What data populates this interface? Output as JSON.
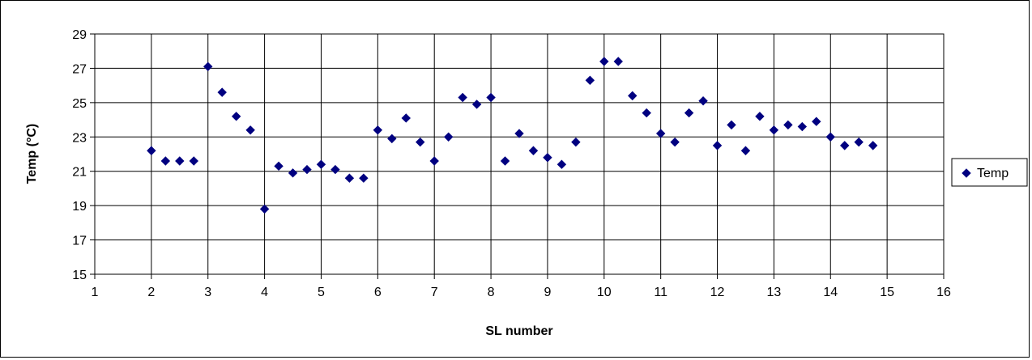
{
  "chart_data": {
    "type": "scatter",
    "xlabel": "SL number",
    "ylabel": "Temp (°C)",
    "xlim": [
      1,
      16
    ],
    "ylim": [
      15,
      29
    ],
    "xticks": [
      1,
      2,
      3,
      4,
      5,
      6,
      7,
      8,
      9,
      10,
      11,
      12,
      13,
      14,
      15,
      16
    ],
    "yticks": [
      15,
      17,
      19,
      21,
      23,
      25,
      27,
      29
    ],
    "grid": true,
    "legend_position": "right",
    "marker": "diamond",
    "series": [
      {
        "name": "Temp",
        "color": "#000080",
        "points": [
          [
            2.0,
            22.2
          ],
          [
            2.25,
            21.6
          ],
          [
            2.5,
            21.6
          ],
          [
            2.75,
            21.6
          ],
          [
            3.0,
            27.1
          ],
          [
            3.25,
            25.6
          ],
          [
            3.5,
            24.2
          ],
          [
            3.75,
            23.4
          ],
          [
            4.0,
            18.8
          ],
          [
            4.25,
            21.3
          ],
          [
            4.5,
            20.9
          ],
          [
            4.75,
            21.1
          ],
          [
            5.0,
            21.4
          ],
          [
            5.25,
            21.1
          ],
          [
            5.5,
            20.6
          ],
          [
            5.75,
            20.6
          ],
          [
            6.0,
            23.4
          ],
          [
            6.25,
            22.9
          ],
          [
            6.5,
            24.1
          ],
          [
            6.75,
            22.7
          ],
          [
            7.0,
            21.6
          ],
          [
            7.25,
            23.0
          ],
          [
            7.5,
            25.3
          ],
          [
            7.75,
            24.9
          ],
          [
            8.0,
            25.3
          ],
          [
            8.25,
            21.6
          ],
          [
            8.5,
            23.2
          ],
          [
            8.75,
            22.2
          ],
          [
            9.0,
            21.8
          ],
          [
            9.25,
            21.4
          ],
          [
            9.5,
            22.7
          ],
          [
            9.75,
            26.3
          ],
          [
            10.0,
            27.4
          ],
          [
            10.25,
            27.4
          ],
          [
            10.5,
            25.4
          ],
          [
            10.75,
            24.4
          ],
          [
            11.0,
            23.2
          ],
          [
            11.25,
            22.7
          ],
          [
            11.5,
            24.4
          ],
          [
            11.75,
            25.1
          ],
          [
            12.0,
            22.5
          ],
          [
            12.25,
            23.7
          ],
          [
            12.5,
            22.2
          ],
          [
            12.75,
            24.2
          ],
          [
            13.0,
            23.4
          ],
          [
            13.25,
            23.7
          ],
          [
            13.5,
            23.6
          ],
          [
            13.75,
            23.9
          ],
          [
            14.0,
            23.0
          ],
          [
            14.25,
            22.5
          ],
          [
            14.5,
            22.7
          ],
          [
            14.75,
            22.5
          ]
        ]
      }
    ]
  }
}
